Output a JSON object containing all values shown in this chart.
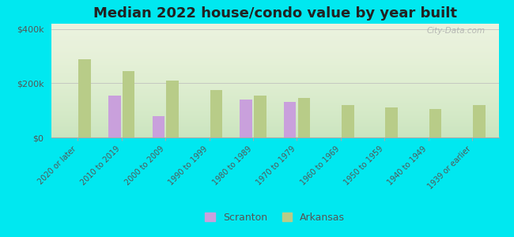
{
  "title": "Median 2022 house/condo value by year built",
  "categories": [
    "2020 or later",
    "2010 to 2019",
    "2000 to 2009",
    "1990 to 1999",
    "1980 to 1989",
    "1970 to 1979",
    "1960 to 1969",
    "1950 to 1959",
    "1940 to 1949",
    "1939 or earlier"
  ],
  "scranton_values": [
    null,
    155000,
    80000,
    null,
    140000,
    130000,
    null,
    null,
    null,
    null
  ],
  "arkansas_values": [
    290000,
    245000,
    210000,
    175000,
    155000,
    145000,
    120000,
    110000,
    105000,
    120000
  ],
  "scranton_color": "#c9a0dc",
  "arkansas_color": "#b8cc88",
  "background_outer": "#00e8f0",
  "background_inner_top": "#e8f0d8",
  "background_inner_bottom": "#c8e8c0",
  "ylim": [
    0,
    420000
  ],
  "ytick_labels": [
    "$0",
    "$200k",
    "$400k"
  ],
  "ytick_values": [
    0,
    200000,
    400000
  ],
  "bar_width": 0.28,
  "legend_scranton": "Scranton",
  "legend_arkansas": "Arkansas",
  "title_fontsize": 13,
  "watermark": "City-Data.com"
}
